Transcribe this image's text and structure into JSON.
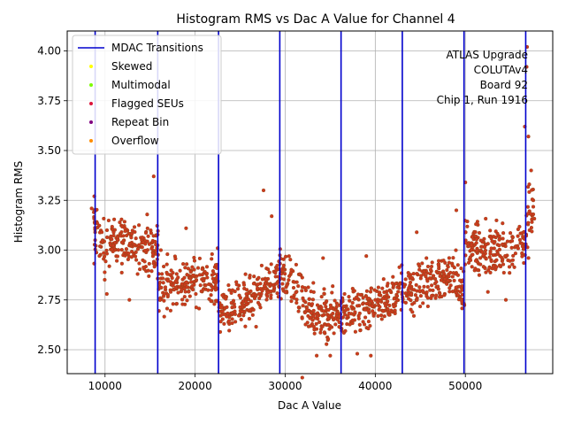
{
  "chart_data": {
    "type": "scatter",
    "title": "Histogram RMS vs Dac A Value for Channel 4",
    "xlabel": "Dac A Value",
    "ylabel": "Histogram RMS",
    "xlim": [
      5800,
      59700
    ],
    "ylim": [
      2.38,
      4.1
    ],
    "x_ticks": [
      10000,
      20000,
      30000,
      40000,
      50000
    ],
    "x_tick_labels": [
      "10000",
      "20000",
      "30000",
      "40000",
      "50000"
    ],
    "y_ticks": [
      2.5,
      2.75,
      3.0,
      3.25,
      3.5,
      3.75,
      4.0
    ],
    "y_tick_labels": [
      "2.50",
      "2.75",
      "3.00",
      "3.25",
      "3.50",
      "3.75",
      "4.00"
    ],
    "grid": true,
    "legend_position": "top-left",
    "legend": [
      {
        "label": "MDAC Transitions",
        "marker": "line",
        "color": "#0000cd"
      },
      {
        "label": "Skewed",
        "marker": "dot",
        "color": "#ffff00"
      },
      {
        "label": "Multimodal",
        "marker": "dot",
        "color": "#7cfc00"
      },
      {
        "label": "Flagged SEUs",
        "marker": "dot",
        "color": "#dc143c"
      },
      {
        "label": "Repeat Bin",
        "marker": "dot",
        "color": "#800080"
      },
      {
        "label": "Overflow",
        "marker": "dot",
        "color": "#ff8c00"
      }
    ],
    "annotation_lines": [
      "ATLAS Upgrade",
      "COLUTAv4",
      "Board 92",
      "Chip 1, Run 1916"
    ],
    "mdac_transitions": [
      8900,
      15850,
      22600,
      29400,
      36200,
      43000,
      49850,
      56700
    ],
    "segments": [
      {
        "x_start": 8500,
        "x_end": 15900,
        "values": [
          3.13,
          3.02,
          3.02,
          3.05,
          3.06,
          3.03,
          3.03,
          3.01
        ],
        "spread": 0.13
      },
      {
        "x_start": 15900,
        "x_end": 22600,
        "values": [
          2.8,
          2.82,
          2.83,
          2.84,
          2.86,
          2.85
        ],
        "spread": 0.12
      },
      {
        "x_start": 22600,
        "x_end": 29400,
        "values": [
          2.7,
          2.72,
          2.74,
          2.78,
          2.83,
          2.87
        ],
        "spread": 0.11
      },
      {
        "x_start": 29400,
        "x_end": 36200,
        "values": [
          2.93,
          2.82,
          2.73,
          2.68,
          2.67,
          2.66
        ],
        "spread": 0.12
      },
      {
        "x_start": 36200,
        "x_end": 43000,
        "values": [
          2.7,
          2.69,
          2.7,
          2.73,
          2.77,
          2.8
        ],
        "spread": 0.11
      },
      {
        "x_start": 43000,
        "x_end": 49900,
        "values": [
          2.79,
          2.82,
          2.84,
          2.86,
          2.87,
          2.8
        ],
        "spread": 0.11
      },
      {
        "x_start": 49900,
        "x_end": 56700,
        "values": [
          3.03,
          3.01,
          2.99,
          2.99,
          3.01,
          3.04
        ],
        "spread": 0.13
      },
      {
        "x_start": 56700,
        "x_end": 57700,
        "values": [
          3.1,
          3.25
        ],
        "spread": 0.15
      }
    ],
    "outliers": [
      {
        "x": 8800,
        "y": 3.27
      },
      {
        "x": 15400,
        "y": 3.37
      },
      {
        "x": 27600,
        "y": 3.3
      },
      {
        "x": 31900,
        "y": 2.36
      },
      {
        "x": 50000,
        "y": 3.34
      },
      {
        "x": 56600,
        "y": 3.62
      },
      {
        "x": 56800,
        "y": 3.92
      },
      {
        "x": 56850,
        "y": 4.02
      },
      {
        "x": 57000,
        "y": 3.57
      },
      {
        "x": 57300,
        "y": 3.4
      },
      {
        "x": 57100,
        "y": 3.33
      },
      {
        "x": 35000,
        "y": 2.47
      },
      {
        "x": 33500,
        "y": 2.47
      },
      {
        "x": 39500,
        "y": 2.47
      },
      {
        "x": 38000,
        "y": 2.48
      },
      {
        "x": 49000,
        "y": 3.2
      },
      {
        "x": 44600,
        "y": 3.09
      },
      {
        "x": 28500,
        "y": 3.17
      },
      {
        "x": 34200,
        "y": 2.96
      },
      {
        "x": 39000,
        "y": 2.97
      },
      {
        "x": 16200,
        "y": 3.0
      },
      {
        "x": 19000,
        "y": 3.11
      },
      {
        "x": 10200,
        "y": 2.78
      },
      {
        "x": 12700,
        "y": 2.75
      },
      {
        "x": 54500,
        "y": 2.75
      },
      {
        "x": 52500,
        "y": 2.79
      }
    ],
    "point_count": 1400,
    "point_color": "#cd3a1f",
    "point_edge_color": "#8b4513"
  }
}
